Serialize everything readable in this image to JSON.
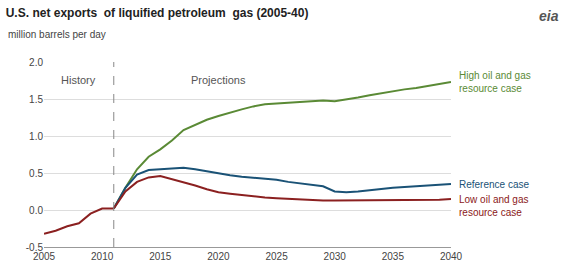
{
  "chart_data": {
    "type": "line",
    "title": "U.S. net exports  of liquified petroleum  gas (2005-40)",
    "subtitle": "million barrels per day",
    "xlim": [
      2005,
      2040
    ],
    "ylim": [
      -0.5,
      2.0
    ],
    "xticks": [
      2005,
      2010,
      2015,
      2020,
      2025,
      2030,
      2035,
      2040
    ],
    "yticks": [
      -0.5,
      {
        "value": 0.0,
        "label": "0.0"
      },
      0.5,
      {
        "value": 1.0,
        "label": "1.0"
      },
      1.5,
      {
        "value": 2.0,
        "label": "2.0"
      }
    ],
    "grid": "y",
    "divider_x": 2011,
    "annotations": [
      {
        "text": "History",
        "x": 2008.0,
        "y": 1.87
      },
      {
        "text": "Projections",
        "x": 2020.0,
        "y": 1.87
      },
      {
        "text": "eia"
      }
    ],
    "series": [
      {
        "color": "#8b2020",
        "x": [
          2005,
          2006,
          2007,
          2008,
          2009,
          2010,
          2011
        ],
        "values": [
          -0.32,
          -0.28,
          -0.22,
          -0.18,
          -0.05,
          0.02,
          0.02
        ]
      },
      {
        "name": "High oil and gas\nresource case",
        "color": "#5a8a35",
        "x": [
          2011,
          2012,
          2013,
          2014,
          2015,
          2016,
          2017,
          2018,
          2019,
          2020,
          2021,
          2022,
          2023,
          2024,
          2025,
          2026,
          2027,
          2028,
          2029,
          2030,
          2031,
          2032,
          2033,
          2034,
          2035,
          2036,
          2037,
          2038,
          2039,
          2040
        ],
        "values": [
          0.02,
          0.3,
          0.55,
          0.72,
          0.82,
          0.94,
          1.08,
          1.15,
          1.22,
          1.27,
          1.32,
          1.36,
          1.4,
          1.43,
          1.44,
          1.45,
          1.46,
          1.47,
          1.48,
          1.47,
          1.49,
          1.52,
          1.55,
          1.58,
          1.6,
          1.63,
          1.65,
          1.68,
          1.7,
          1.73
        ]
      },
      {
        "name": "Reference case",
        "color": "#1a5276",
        "x": [
          2011,
          2012,
          2013,
          2014,
          2015,
          2016,
          2017,
          2018,
          2019,
          2020,
          2021,
          2022,
          2023,
          2024,
          2025,
          2026,
          2027,
          2028,
          2029,
          2030,
          2031,
          2032,
          2033,
          2034,
          2035,
          2036,
          2037,
          2038,
          2039,
          2040
        ],
        "values": [
          0.02,
          0.3,
          0.48,
          0.54,
          0.55,
          0.56,
          0.57,
          0.55,
          0.52,
          0.5,
          0.47,
          0.45,
          0.44,
          0.42,
          0.41,
          0.38,
          0.36,
          0.35,
          0.32,
          0.25,
          0.24,
          0.25,
          0.27,
          0.28,
          0.3,
          0.31,
          0.32,
          0.33,
          0.34,
          0.35
        ]
      },
      {
        "name": "Low oil and gas\nresource case",
        "color": "#8b2020",
        "x": [
          2011,
          2012,
          2013,
          2014,
          2015,
          2016,
          2017,
          2018,
          2019,
          2020,
          2021,
          2022,
          2023,
          2024,
          2025,
          2026,
          2027,
          2028,
          2029,
          2030,
          2031,
          2032,
          2033,
          2034,
          2035,
          2036,
          2037,
          2038,
          2039,
          2040
        ],
        "values": [
          0.02,
          0.25,
          0.38,
          0.44,
          0.46,
          0.42,
          0.38,
          0.33,
          0.28,
          0.24,
          0.22,
          0.2,
          0.18,
          0.17,
          0.16,
          0.15,
          0.14,
          0.14,
          0.13,
          0.13,
          0.13,
          0.13,
          0.13,
          0.13,
          0.14,
          0.14,
          0.14,
          0.14,
          0.14,
          0.15
        ]
      }
    ]
  }
}
